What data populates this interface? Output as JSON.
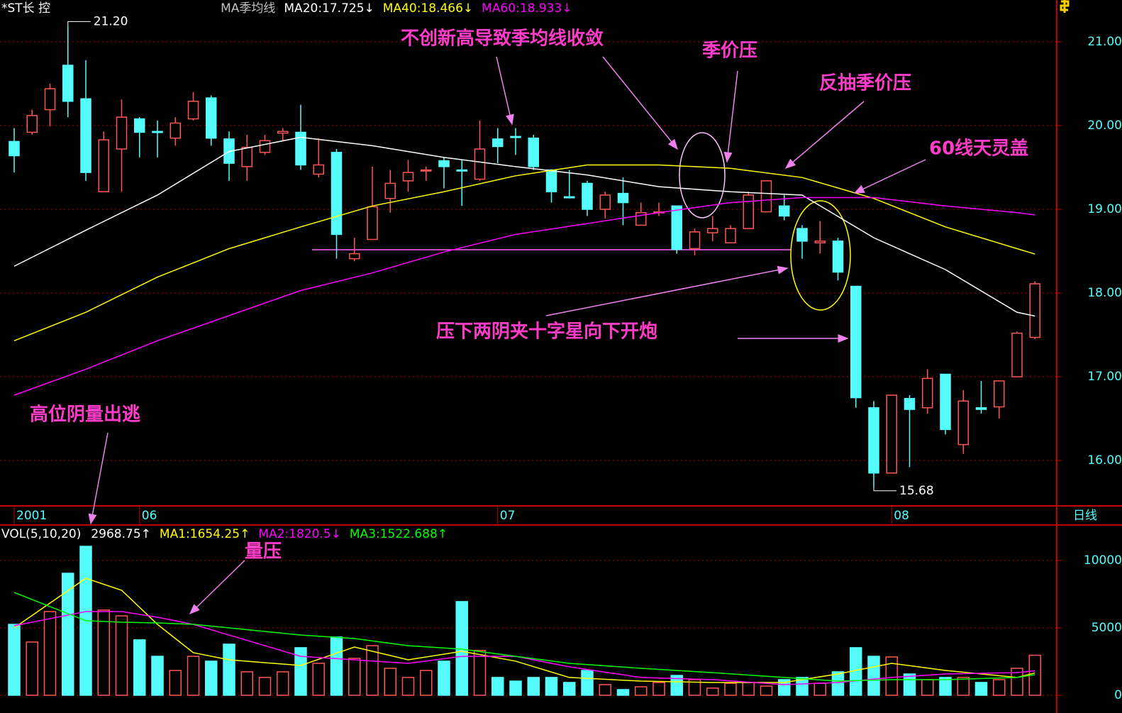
{
  "chart_data": [
    {
      "type": "candlestick",
      "title": "*ST长 控",
      "subtitle": "MA季均线",
      "period": "日线",
      "categories": [
        "2001",
        null,
        null,
        null,
        null,
        null,
        null,
        "06",
        null,
        null,
        null,
        null,
        null,
        null,
        null,
        null,
        null,
        null,
        null,
        null,
        null,
        null,
        null,
        null,
        null,
        null,
        null,
        "07",
        null,
        null,
        null,
        null,
        null,
        null,
        null,
        null,
        null,
        null,
        null,
        null,
        null,
        null,
        null,
        null,
        null,
        null,
        null,
        null,
        null,
        "08",
        null,
        null,
        null,
        null,
        null,
        null,
        null,
        null
      ],
      "open": [
        19.81,
        19.92,
        20.19,
        20.72,
        20.32,
        19.21,
        19.72,
        20.08,
        19.93,
        19.85,
        20.08,
        20.33,
        19.84,
        19.51,
        19.68,
        19.91,
        19.92,
        19.42,
        19.68,
        18.41,
        18.64,
        19.13,
        19.34,
        19.46,
        19.58,
        19.47,
        19.36,
        19.84,
        19.87,
        19.85,
        19.47,
        19.15,
        19.31,
        19.0,
        19.19,
        18.81,
        18.96,
        19.04,
        18.53,
        18.72,
        18.6,
        18.77,
        18.97,
        19.04,
        18.77,
        18.6,
        18.62,
        18.08,
        16.63,
        15.85,
        16.74,
        16.63,
        17.03,
        16.19,
        16.63,
        16.64,
        17.0,
        17.47
      ],
      "high": [
        19.97,
        20.19,
        20.5,
        21.2,
        20.78,
        19.93,
        20.31,
        20.1,
        20.06,
        20.1,
        20.4,
        20.36,
        19.93,
        19.89,
        19.89,
        19.97,
        20.25,
        19.85,
        19.72,
        18.66,
        19.51,
        19.47,
        19.59,
        19.51,
        19.62,
        19.59,
        20.06,
        19.97,
        19.97,
        19.89,
        19.48,
        19.47,
        19.34,
        19.21,
        19.38,
        19.08,
        19.08,
        19.04,
        18.77,
        18.92,
        18.81,
        19.21,
        19.34,
        19.17,
        18.81,
        18.86,
        18.66,
        18.08,
        16.71,
        16.78,
        16.78,
        17.09,
        17.03,
        16.84,
        16.95,
        16.95,
        17.54,
        18.14
      ],
      "low": [
        19.44,
        19.89,
        19.99,
        20.1,
        19.34,
        19.21,
        19.21,
        19.62,
        19.62,
        19.76,
        20.06,
        19.76,
        19.34,
        19.34,
        19.65,
        19.81,
        19.47,
        19.38,
        18.41,
        18.38,
        18.64,
        18.96,
        19.21,
        19.34,
        19.25,
        19.04,
        19.34,
        19.55,
        19.65,
        19.47,
        19.08,
        19.13,
        18.92,
        18.89,
        18.81,
        18.81,
        18.92,
        18.47,
        18.45,
        18.62,
        18.6,
        18.77,
        18.97,
        18.87,
        18.41,
        18.47,
        18.15,
        16.63,
        15.68,
        15.85,
        15.92,
        16.56,
        16.31,
        16.08,
        16.56,
        16.5,
        17.0,
        17.45
      ],
      "close": [
        19.64,
        20.12,
        20.44,
        20.29,
        19.44,
        19.83,
        20.1,
        19.92,
        19.92,
        20.03,
        20.29,
        19.85,
        19.55,
        19.74,
        19.82,
        19.93,
        19.53,
        19.53,
        18.7,
        18.47,
        19.03,
        19.31,
        19.44,
        19.47,
        19.51,
        19.46,
        19.72,
        19.75,
        19.86,
        19.51,
        19.21,
        19.14,
        19.0,
        19.17,
        19.08,
        18.96,
        18.97,
        18.52,
        18.73,
        18.77,
        18.77,
        19.17,
        19.34,
        18.92,
        18.62,
        18.62,
        18.25,
        16.75,
        15.85,
        16.78,
        16.61,
        16.98,
        16.37,
        16.71,
        16.61,
        16.95,
        17.52,
        18.11
      ],
      "up_color": "#ff5454",
      "down_color": "#54fcfc",
      "max_label": {
        "value": 21.2,
        "label": "21.20"
      },
      "min_label": {
        "value": 15.68,
        "label": "15.68"
      },
      "series": [
        {
          "name": "MA20:",
          "arrow": "↓",
          "color": "#ffffff",
          "x": [
            0,
            4,
            8,
            12,
            16,
            20,
            24,
            28,
            32,
            36,
            40,
            44,
            48,
            52,
            56,
            57
          ],
          "values": [
            18.32,
            18.75,
            19.17,
            19.69,
            19.86,
            19.76,
            19.62,
            19.51,
            19.41,
            19.27,
            19.21,
            19.17,
            18.66,
            18.28,
            17.77,
            17.725
          ]
        },
        {
          "name": "MA40:",
          "arrow": "↓",
          "color": "#ffff00",
          "x": [
            0,
            4,
            8,
            12,
            16,
            20,
            24,
            28,
            32,
            36,
            40,
            44,
            48,
            52,
            56,
            57
          ],
          "values": [
            17.43,
            17.77,
            18.19,
            18.53,
            18.79,
            19.04,
            19.21,
            19.4,
            19.53,
            19.53,
            19.49,
            19.38,
            19.13,
            18.79,
            18.53,
            18.466
          ]
        },
        {
          "name": "MA60:",
          "arrow": "↓",
          "color": "#ff00ff",
          "x": [
            0,
            4,
            8,
            12,
            16,
            20,
            24,
            28,
            32,
            36,
            40,
            44,
            48,
            52,
            56,
            57
          ],
          "values": [
            16.78,
            17.09,
            17.43,
            17.73,
            18.03,
            18.24,
            18.49,
            18.7,
            18.83,
            18.96,
            19.08,
            19.14,
            19.14,
            19.04,
            18.96,
            18.933
          ]
        }
      ],
      "ylim": [
        15.458,
        21.5
      ],
      "yticks": [
        {
          "value": 21,
          "label": "21.00"
        },
        {
          "value": 20,
          "label": "20.00"
        },
        {
          "value": 19,
          "label": "19.00"
        },
        {
          "value": 18,
          "label": "18.00"
        },
        {
          "value": 17,
          "label": "17.00"
        },
        {
          "value": 16,
          "label": "16.00"
        }
      ],
      "grid": true,
      "annotations": [
        "不创新高导致季均线收敛",
        "季价压",
        "反抽季价压",
        "60线天灵盖",
        "压下两阴夹十字星向下开炮"
      ]
    },
    {
      "type": "bar",
      "title": "VOL(5,10,20)",
      "arrow": "↑",
      "values": [
        5260,
        3950,
        6210,
        9050,
        11050,
        6320,
        5890,
        4110,
        2890,
        1840,
        2890,
        2530,
        3790,
        1740,
        1320,
        1740,
        3530,
        2370,
        4320,
        2740,
        3680,
        2000,
        1320,
        1840,
        2530,
        6950,
        3320,
        1320,
        1050,
        1320,
        1320,
        950,
        1840,
        790,
        420,
        630,
        950,
        1470,
        1160,
        530,
        890,
        950,
        680,
        1160,
        1320,
        890,
        1740,
        3530,
        2890,
        2840,
        1580,
        1160,
        1320,
        1320,
        950,
        1160,
        2000,
        2968.75
      ],
      "series": [
        {
          "name": "MA1:",
          "arrow": "↑",
          "color": "#ffff00",
          "x": [
            0,
            4,
            6,
            8,
            10,
            12,
            16,
            19,
            22,
            25,
            28,
            31,
            35,
            39,
            43,
            46,
            49,
            52,
            56,
            57
          ],
          "values": [
            5000,
            8680,
            7790,
            5260,
            3160,
            2630,
            2210,
            3580,
            2630,
            3260,
            2530,
            1320,
            1050,
            950,
            950,
            1580,
            2370,
            1840,
            1320,
            1654.25
          ]
        },
        {
          "name": "MA2:",
          "arrow": "↓",
          "color": "#ff00ff",
          "x": [
            0,
            4,
            6,
            8,
            10,
            12,
            16,
            19,
            22,
            25,
            28,
            31,
            35,
            39,
            43,
            46,
            49,
            52,
            56,
            57
          ],
          "values": [
            5160,
            6210,
            6210,
            5790,
            5260,
            4470,
            2890,
            2630,
            2370,
            2890,
            2890,
            2110,
            1320,
            1160,
            790,
            950,
            1320,
            1580,
            1680,
            1820.5
          ]
        },
        {
          "name": "MA3:",
          "arrow": "↑",
          "color": "#00ff00",
          "x": [
            0,
            4,
            6,
            8,
            10,
            12,
            16,
            19,
            22,
            25,
            28,
            31,
            35,
            39,
            43,
            46,
            49,
            52,
            56,
            57
          ],
          "values": [
            7630,
            5530,
            5420,
            5370,
            5260,
            5000,
            4470,
            4210,
            3680,
            3420,
            2890,
            2370,
            2000,
            1680,
            1320,
            1050,
            1160,
            1160,
            1320,
            1522.688
          ]
        }
      ],
      "ylim": [
        0,
        12500
      ],
      "yticks": [
        10000,
        5000,
        0
      ],
      "grid": true,
      "annotations": [
        "高位阴量出逃",
        "量压"
      ]
    }
  ]
}
